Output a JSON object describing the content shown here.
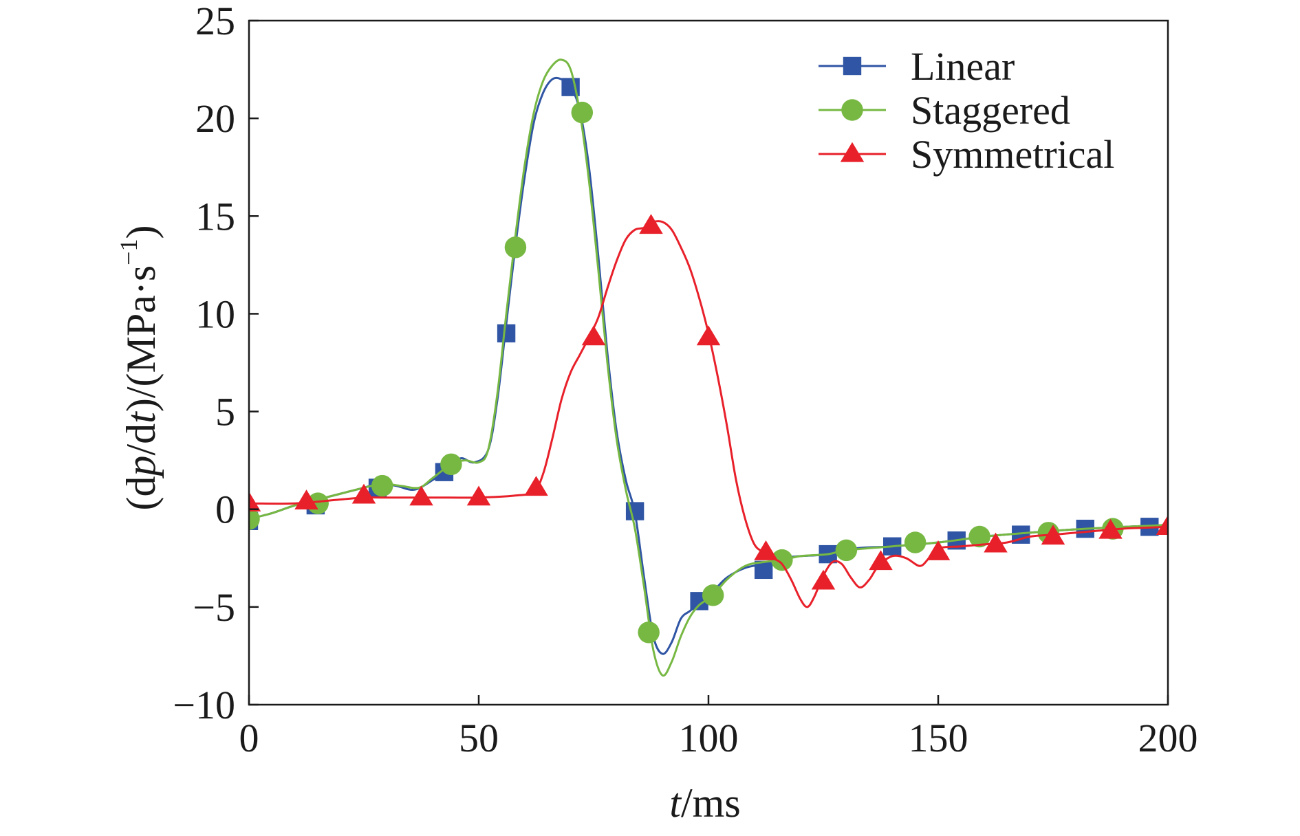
{
  "chart_data": {
    "type": "line",
    "xlabel": {
      "var": "t",
      "rest": "/ms"
    },
    "ylabel": {
      "pre": "(d",
      "var1": "p",
      "mid": "/d",
      "var2": "t",
      "close": ")/(MPa·s",
      "sup": "−1",
      "end": ")"
    },
    "xlim": [
      0,
      200
    ],
    "ylim": [
      -10,
      25
    ],
    "xticks": [
      0,
      50,
      100,
      150,
      200
    ],
    "yticks": [
      -10,
      -5,
      0,
      5,
      10,
      15,
      20,
      25
    ],
    "xtick_labels": [
      "0",
      "50",
      "100",
      "150",
      "200"
    ],
    "ytick_labels": [
      "−10",
      "−5",
      "0",
      "5",
      "10",
      "15",
      "20",
      "25"
    ],
    "grid": false,
    "legend_position": "top-right",
    "series": [
      {
        "name": "Linear",
        "color": "#2f55a4",
        "marker": "square",
        "curve": [
          [
            0,
            -0.5
          ],
          [
            5,
            -0.2
          ],
          [
            10,
            0.2
          ],
          [
            15,
            0.5
          ],
          [
            20,
            0.8
          ],
          [
            25,
            1.1
          ],
          [
            28,
            1.3
          ],
          [
            32,
            1.2
          ],
          [
            36,
            1.0
          ],
          [
            40,
            1.5
          ],
          [
            43,
            2.0
          ],
          [
            46,
            2.6
          ],
          [
            49,
            2.4
          ],
          [
            52,
            3.0
          ],
          [
            54,
            5.5
          ],
          [
            56,
            9.5
          ],
          [
            58,
            13.5
          ],
          [
            60,
            17.0
          ],
          [
            62,
            19.8
          ],
          [
            64,
            21.3
          ],
          [
            66,
            22.0
          ],
          [
            68,
            22.0
          ],
          [
            70,
            21.6
          ],
          [
            72,
            20.4
          ],
          [
            74,
            17.5
          ],
          [
            76,
            13.0
          ],
          [
            78,
            8.0
          ],
          [
            80,
            4.0
          ],
          [
            82,
            1.5
          ],
          [
            84,
            -0.2
          ],
          [
            86,
            -3.5
          ],
          [
            88,
            -6.5
          ],
          [
            90,
            -7.4
          ],
          [
            92,
            -6.8
          ],
          [
            94,
            -5.6
          ],
          [
            96,
            -5.2
          ],
          [
            98,
            -4.8
          ],
          [
            101,
            -4.2
          ],
          [
            104,
            -3.5
          ],
          [
            108,
            -3.0
          ],
          [
            112,
            -2.8
          ],
          [
            116,
            -2.5
          ],
          [
            120,
            -2.4
          ],
          [
            126,
            -2.3
          ],
          [
            132,
            -2.0
          ],
          [
            140,
            -1.9
          ],
          [
            150,
            -1.7
          ],
          [
            160,
            -1.4
          ],
          [
            170,
            -1.2
          ],
          [
            182,
            -1.0
          ],
          [
            200,
            -0.8
          ]
        ],
        "markers": [
          [
            0,
            -0.6
          ],
          [
            14.5,
            0.2
          ],
          [
            28,
            1.1
          ],
          [
            42.5,
            1.9
          ],
          [
            56,
            9.0
          ],
          [
            70,
            21.6
          ],
          [
            84,
            -0.1
          ],
          [
            98,
            -4.7
          ],
          [
            112,
            -3.1
          ],
          [
            126,
            -2.3
          ],
          [
            140,
            -1.9
          ],
          [
            154,
            -1.6
          ],
          [
            168,
            -1.3
          ],
          [
            182,
            -1.0
          ],
          [
            196,
            -0.9
          ]
        ]
      },
      {
        "name": "Staggered",
        "color": "#77b843",
        "marker": "circle",
        "curve": [
          [
            0,
            -0.5
          ],
          [
            5,
            -0.2
          ],
          [
            10,
            0.2
          ],
          [
            15,
            0.5
          ],
          [
            20,
            0.8
          ],
          [
            25,
            1.1
          ],
          [
            29,
            1.3
          ],
          [
            33,
            1.2
          ],
          [
            37,
            1.1
          ],
          [
            40,
            1.6
          ],
          [
            44,
            2.3
          ],
          [
            47,
            2.5
          ],
          [
            50,
            2.4
          ],
          [
            52,
            3.0
          ],
          [
            54,
            5.8
          ],
          [
            56,
            10.0
          ],
          [
            58,
            14.0
          ],
          [
            60,
            17.6
          ],
          [
            62,
            20.3
          ],
          [
            64,
            21.9
          ],
          [
            66,
            22.7
          ],
          [
            68,
            23.0
          ],
          [
            70,
            22.5
          ],
          [
            72,
            20.3
          ],
          [
            74,
            16.8
          ],
          [
            76,
            12.3
          ],
          [
            78,
            7.5
          ],
          [
            80,
            3.6
          ],
          [
            82,
            1.0
          ],
          [
            84,
            -1.0
          ],
          [
            86,
            -4.0
          ],
          [
            88,
            -7.2
          ],
          [
            90,
            -8.5
          ],
          [
            92,
            -7.8
          ],
          [
            94,
            -6.5
          ],
          [
            96,
            -5.5
          ],
          [
            98,
            -4.9
          ],
          [
            101,
            -4.4
          ],
          [
            104,
            -3.6
          ],
          [
            108,
            -2.9
          ],
          [
            112,
            -2.7
          ],
          [
            116,
            -2.6
          ],
          [
            120,
            -2.4
          ],
          [
            126,
            -2.3
          ],
          [
            130,
            -2.1
          ],
          [
            140,
            -1.9
          ],
          [
            150,
            -1.7
          ],
          [
            160,
            -1.4
          ],
          [
            170,
            -1.2
          ],
          [
            182,
            -1.0
          ],
          [
            200,
            -0.8
          ]
        ],
        "markers": [
          [
            0,
            -0.5
          ],
          [
            15,
            0.3
          ],
          [
            29,
            1.2
          ],
          [
            44,
            2.3
          ],
          [
            58,
            13.4
          ],
          [
            72.5,
            20.3
          ],
          [
            87,
            -6.3
          ],
          [
            101,
            -4.4
          ],
          [
            116,
            -2.6
          ],
          [
            130,
            -2.1
          ],
          [
            145,
            -1.7
          ],
          [
            159,
            -1.4
          ],
          [
            174,
            -1.2
          ],
          [
            188,
            -1.0
          ]
        ]
      },
      {
        "name": "Symmetrical",
        "color": "#e8202a",
        "marker": "triangle",
        "curve": [
          [
            0,
            0.3
          ],
          [
            10,
            0.3
          ],
          [
            20,
            0.5
          ],
          [
            25,
            0.6
          ],
          [
            30,
            0.6
          ],
          [
            40,
            0.6
          ],
          [
            50,
            0.6
          ],
          [
            58,
            0.7
          ],
          [
            62,
            0.9
          ],
          [
            64,
            1.8
          ],
          [
            66,
            3.6
          ],
          [
            68,
            5.6
          ],
          [
            70,
            7.0
          ],
          [
            72,
            7.9
          ],
          [
            74,
            8.8
          ],
          [
            76,
            9.8
          ],
          [
            78,
            11.3
          ],
          [
            80,
            12.7
          ],
          [
            82,
            13.8
          ],
          [
            84,
            14.3
          ],
          [
            86,
            14.4
          ],
          [
            88,
            14.7
          ],
          [
            90,
            14.7
          ],
          [
            92,
            14.3
          ],
          [
            94,
            13.4
          ],
          [
            96,
            12.3
          ],
          [
            98,
            10.8
          ],
          [
            100,
            9.0
          ],
          [
            102,
            6.8
          ],
          [
            104,
            4.3
          ],
          [
            106,
            1.5
          ],
          [
            108,
            -0.5
          ],
          [
            110,
            -1.8
          ],
          [
            112,
            -2.2
          ],
          [
            114,
            -2.5
          ],
          [
            116,
            -2.8
          ],
          [
            118,
            -3.6
          ],
          [
            120,
            -4.6
          ],
          [
            121.5,
            -5.0
          ],
          [
            123,
            -4.5
          ],
          [
            125,
            -3.4
          ],
          [
            127,
            -2.7
          ],
          [
            129,
            -2.8
          ],
          [
            131,
            -3.5
          ],
          [
            133,
            -4.0
          ],
          [
            135,
            -3.6
          ],
          [
            137,
            -2.9
          ],
          [
            140,
            -2.4
          ],
          [
            143,
            -2.5
          ],
          [
            146,
            -2.9
          ],
          [
            148,
            -2.5
          ],
          [
            150,
            -2.0
          ],
          [
            155,
            -1.9
          ],
          [
            160,
            -1.8
          ],
          [
            165,
            -1.7
          ],
          [
            170,
            -1.4
          ],
          [
            175,
            -1.3
          ],
          [
            180,
            -1.2
          ],
          [
            190,
            -1.0
          ],
          [
            200,
            -0.9
          ]
        ],
        "markers": [
          [
            0,
            0.3
          ],
          [
            12.5,
            0.4
          ],
          [
            25,
            0.7
          ],
          [
            37.5,
            0.6
          ],
          [
            50,
            0.6
          ],
          [
            62.5,
            1.1
          ],
          [
            75,
            8.8
          ],
          [
            87.5,
            14.5
          ],
          [
            100,
            8.8
          ],
          [
            112.5,
            -2.2
          ],
          [
            125,
            -3.7
          ],
          [
            137.5,
            -2.7
          ],
          [
            150,
            -2.2
          ],
          [
            162.5,
            -1.8
          ],
          [
            175,
            -1.4
          ],
          [
            187.5,
            -1.1
          ],
          [
            200,
            -0.9
          ]
        ]
      }
    ]
  }
}
